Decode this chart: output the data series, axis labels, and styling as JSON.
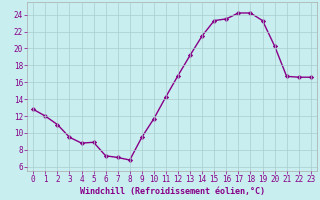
{
  "x": [
    0,
    1,
    2,
    3,
    4,
    5,
    6,
    7,
    8,
    9,
    10,
    11,
    12,
    13,
    14,
    15,
    16,
    17,
    18,
    19,
    20,
    21,
    22,
    23
  ],
  "y": [
    12.8,
    12.0,
    11.0,
    9.5,
    8.8,
    8.9,
    7.3,
    7.1,
    6.8,
    9.5,
    11.7,
    14.3,
    16.8,
    19.2,
    21.5,
    23.3,
    23.5,
    24.2,
    24.2,
    23.3,
    20.3,
    16.7,
    16.6,
    16.6
  ],
  "line_color": "#880088",
  "marker": "D",
  "marker_size": 2.2,
  "background_color": "#c8eef0",
  "grid_color": "#aacccc",
  "xlabel": "Windchill (Refroidissement éolien,°C)",
  "xlim": [
    -0.5,
    23.5
  ],
  "ylim": [
    5.5,
    25.5
  ],
  "yticks": [
    6,
    8,
    10,
    12,
    14,
    16,
    18,
    20,
    22,
    24
  ],
  "xticks": [
    0,
    1,
    2,
    3,
    4,
    5,
    6,
    7,
    8,
    9,
    10,
    11,
    12,
    13,
    14,
    15,
    16,
    17,
    18,
    19,
    20,
    21,
    22,
    23
  ],
  "tick_fontsize": 5.5,
  "xlabel_fontsize": 6.0,
  "line_width": 1.0
}
